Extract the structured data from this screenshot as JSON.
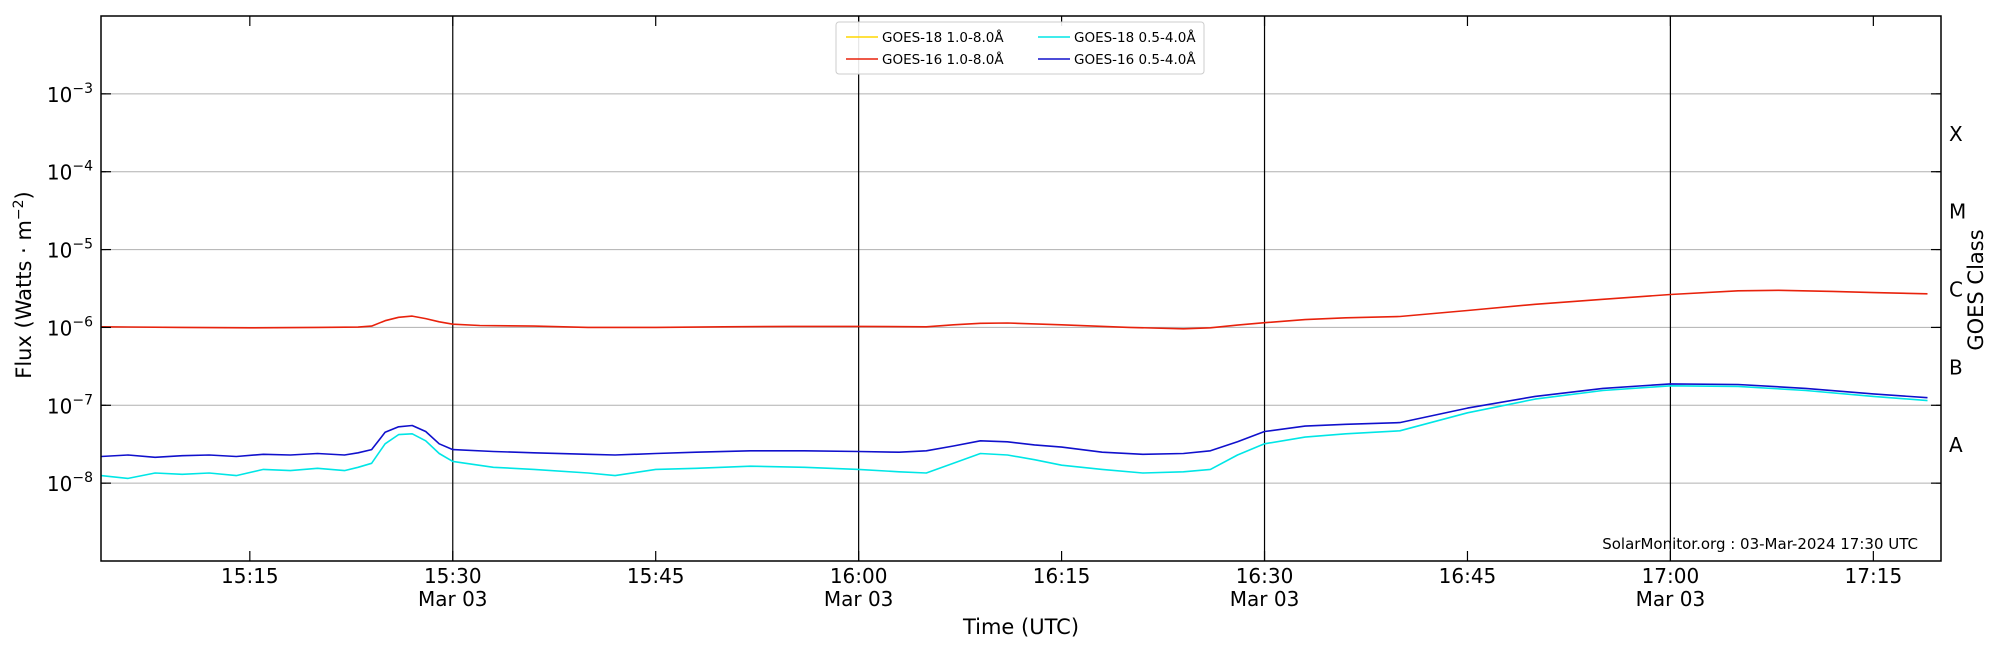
{
  "chart_data": {
    "type": "line",
    "y_scale": "log",
    "ylim": [
      1e-09,
      0.01
    ],
    "xlim": [
      "15:04",
      "17:20"
    ],
    "xlabel": "Time (UTC)",
    "ylabel_main": "Flux (Watts · m",
    "ylabel_sup": "−2",
    "ylabel_close": ")",
    "y2label": "GOES Class",
    "grid": "horizontal",
    "legend_position": "top-center",
    "y_ticks": [
      {
        "value": 1e-08,
        "base": "10",
        "exp": "−8"
      },
      {
        "value": 1e-07,
        "base": "10",
        "exp": "−7"
      },
      {
        "value": 1e-06,
        "base": "10",
        "exp": "−6"
      },
      {
        "value": 1e-05,
        "base": "10",
        "exp": "−5"
      },
      {
        "value": 0.0001,
        "base": "10",
        "exp": "−4"
      },
      {
        "value": 0.001,
        "base": "10",
        "exp": "−3"
      }
    ],
    "x_ticks": [
      {
        "time": "15:15",
        "label": "15:15",
        "date": ""
      },
      {
        "time": "15:30",
        "label": "15:30",
        "date": "Mar 03"
      },
      {
        "time": "15:45",
        "label": "15:45",
        "date": ""
      },
      {
        "time": "16:00",
        "label": "16:00",
        "date": "Mar 03"
      },
      {
        "time": "16:15",
        "label": "16:15",
        "date": ""
      },
      {
        "time": "16:30",
        "label": "16:30",
        "date": "Mar 03"
      },
      {
        "time": "16:45",
        "label": "16:45",
        "date": ""
      },
      {
        "time": "17:00",
        "label": "17:00",
        "date": "Mar 03"
      },
      {
        "time": "17:15",
        "label": "17:15",
        "date": ""
      }
    ],
    "vertical_lines": [
      "15:30",
      "16:00",
      "16:30",
      "17:00"
    ],
    "goes_classes": [
      {
        "label": "A",
        "value": 3.16e-08
      },
      {
        "label": "B",
        "value": 3.16e-07
      },
      {
        "label": "C",
        "value": 3.16e-06
      },
      {
        "label": "M",
        "value": 3.16e-05
      },
      {
        "label": "X",
        "value": 0.000316
      }
    ],
    "credit": "SolarMonitor.org : 03-Mar-2024 17:30 UTC",
    "series": [
      {
        "name": "GOES-18 1.0-8.0Å",
        "color": "#ffd700",
        "points": []
      },
      {
        "name": "GOES-16 1.0-8.0Å",
        "color": "#e8220c",
        "points": [
          [
            "15:04",
            1.02e-06
          ],
          [
            "15:10",
            1e-06
          ],
          [
            "15:15",
            9.9e-07
          ],
          [
            "15:20",
            1e-06
          ],
          [
            "15:23",
            1.01e-06
          ],
          [
            "15:24",
            1.04e-06
          ],
          [
            "15:25",
            1.22e-06
          ],
          [
            "15:26",
            1.35e-06
          ],
          [
            "15:27",
            1.4e-06
          ],
          [
            "15:28",
            1.3e-06
          ],
          [
            "15:29",
            1.18e-06
          ],
          [
            "15:30",
            1.1e-06
          ],
          [
            "15:32",
            1.06e-06
          ],
          [
            "15:36",
            1.04e-06
          ],
          [
            "15:40",
            1e-06
          ],
          [
            "15:45",
            1e-06
          ],
          [
            "15:50",
            1.02e-06
          ],
          [
            "15:55",
            1.03e-06
          ],
          [
            "16:00",
            1.03e-06
          ],
          [
            "16:05",
            1.02e-06
          ],
          [
            "16:07",
            1.08e-06
          ],
          [
            "16:09",
            1.13e-06
          ],
          [
            "16:11",
            1.14e-06
          ],
          [
            "16:15",
            1.08e-06
          ],
          [
            "16:20",
            1e-06
          ],
          [
            "16:24",
            9.6e-07
          ],
          [
            "16:26",
            9.9e-07
          ],
          [
            "16:28",
            1.07e-06
          ],
          [
            "16:30",
            1.15e-06
          ],
          [
            "16:33",
            1.26e-06
          ],
          [
            "16:36",
            1.33e-06
          ],
          [
            "16:40",
            1.38e-06
          ],
          [
            "16:45",
            1.65e-06
          ],
          [
            "16:50",
            1.98e-06
          ],
          [
            "16:55",
            2.3e-06
          ],
          [
            "17:00",
            2.65e-06
          ],
          [
            "17:05",
            2.95e-06
          ],
          [
            "17:08",
            3e-06
          ],
          [
            "17:12",
            2.9e-06
          ],
          [
            "17:15",
            2.8e-06
          ],
          [
            "17:19",
            2.7e-06
          ]
        ]
      },
      {
        "name": "GOES-18 0.5-4.0Å",
        "color": "#00e6e6",
        "points": [
          [
            "15:04",
            1.25e-08
          ],
          [
            "15:06",
            1.15e-08
          ],
          [
            "15:08",
            1.35e-08
          ],
          [
            "15:10",
            1.3e-08
          ],
          [
            "15:12",
            1.35e-08
          ],
          [
            "15:14",
            1.25e-08
          ],
          [
            "15:16",
            1.5e-08
          ],
          [
            "15:18",
            1.45e-08
          ],
          [
            "15:20",
            1.55e-08
          ],
          [
            "15:22",
            1.45e-08
          ],
          [
            "15:23",
            1.6e-08
          ],
          [
            "15:24",
            1.8e-08
          ],
          [
            "15:25",
            3.2e-08
          ],
          [
            "15:26",
            4.2e-08
          ],
          [
            "15:27",
            4.3e-08
          ],
          [
            "15:28",
            3.5e-08
          ],
          [
            "15:29",
            2.4e-08
          ],
          [
            "15:30",
            1.9e-08
          ],
          [
            "15:33",
            1.6e-08
          ],
          [
            "15:36",
            1.5e-08
          ],
          [
            "15:40",
            1.35e-08
          ],
          [
            "15:42",
            1.25e-08
          ],
          [
            "15:45",
            1.5e-08
          ],
          [
            "15:48",
            1.55e-08
          ],
          [
            "15:52",
            1.65e-08
          ],
          [
            "15:56",
            1.6e-08
          ],
          [
            "16:00",
            1.5e-08
          ],
          [
            "16:03",
            1.4e-08
          ],
          [
            "16:05",
            1.35e-08
          ],
          [
            "16:07",
            1.8e-08
          ],
          [
            "16:09",
            2.4e-08
          ],
          [
            "16:11",
            2.3e-08
          ],
          [
            "16:13",
            2e-08
          ],
          [
            "16:15",
            1.7e-08
          ],
          [
            "16:18",
            1.5e-08
          ],
          [
            "16:21",
            1.35e-08
          ],
          [
            "16:24",
            1.4e-08
          ],
          [
            "16:26",
            1.5e-08
          ],
          [
            "16:28",
            2.3e-08
          ],
          [
            "16:30",
            3.2e-08
          ],
          [
            "16:33",
            3.9e-08
          ],
          [
            "16:36",
            4.3e-08
          ],
          [
            "16:40",
            4.7e-08
          ],
          [
            "16:45",
            8e-08
          ],
          [
            "16:50",
            1.2e-07
          ],
          [
            "16:55",
            1.55e-07
          ],
          [
            "17:00",
            1.78e-07
          ],
          [
            "17:05",
            1.75e-07
          ],
          [
            "17:10",
            1.55e-07
          ],
          [
            "17:15",
            1.3e-07
          ],
          [
            "17:19",
            1.15e-07
          ]
        ]
      },
      {
        "name": "GOES-16 0.5-4.0Å",
        "color": "#1010cc",
        "points": [
          [
            "15:04",
            2.2e-08
          ],
          [
            "15:06",
            2.3e-08
          ],
          [
            "15:08",
            2.15e-08
          ],
          [
            "15:10",
            2.25e-08
          ],
          [
            "15:12",
            2.3e-08
          ],
          [
            "15:14",
            2.2e-08
          ],
          [
            "15:16",
            2.35e-08
          ],
          [
            "15:18",
            2.3e-08
          ],
          [
            "15:20",
            2.4e-08
          ],
          [
            "15:22",
            2.3e-08
          ],
          [
            "15:23",
            2.45e-08
          ],
          [
            "15:24",
            2.7e-08
          ],
          [
            "15:25",
            4.5e-08
          ],
          [
            "15:26",
            5.3e-08
          ],
          [
            "15:27",
            5.5e-08
          ],
          [
            "15:28",
            4.6e-08
          ],
          [
            "15:29",
            3.2e-08
          ],
          [
            "15:30",
            2.7e-08
          ],
          [
            "15:33",
            2.55e-08
          ],
          [
            "15:36",
            2.45e-08
          ],
          [
            "15:40",
            2.35e-08
          ],
          [
            "15:42",
            2.3e-08
          ],
          [
            "15:45",
            2.4e-08
          ],
          [
            "15:48",
            2.5e-08
          ],
          [
            "15:52",
            2.6e-08
          ],
          [
            "15:56",
            2.6e-08
          ],
          [
            "16:00",
            2.55e-08
          ],
          [
            "16:03",
            2.5e-08
          ],
          [
            "16:05",
            2.6e-08
          ],
          [
            "16:07",
            3e-08
          ],
          [
            "16:09",
            3.5e-08
          ],
          [
            "16:11",
            3.4e-08
          ],
          [
            "16:13",
            3.1e-08
          ],
          [
            "16:15",
            2.9e-08
          ],
          [
            "16:18",
            2.5e-08
          ],
          [
            "16:21",
            2.35e-08
          ],
          [
            "16:24",
            2.4e-08
          ],
          [
            "16:26",
            2.6e-08
          ],
          [
            "16:28",
            3.4e-08
          ],
          [
            "16:30",
            4.6e-08
          ],
          [
            "16:33",
            5.4e-08
          ],
          [
            "16:36",
            5.7e-08
          ],
          [
            "16:40",
            6e-08
          ],
          [
            "16:45",
            9.2e-08
          ],
          [
            "16:50",
            1.3e-07
          ],
          [
            "16:55",
            1.65e-07
          ],
          [
            "17:00",
            1.88e-07
          ],
          [
            "17:05",
            1.85e-07
          ],
          [
            "17:10",
            1.65e-07
          ],
          [
            "17:15",
            1.4e-07
          ],
          [
            "17:19",
            1.25e-07
          ]
        ]
      }
    ]
  }
}
